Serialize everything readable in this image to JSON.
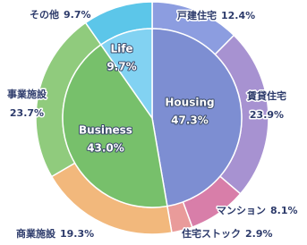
{
  "chart_data": {
    "type": "sunburst",
    "inner": {
      "categories": [
        "Housing",
        "Business",
        "Life"
      ],
      "values": [
        47.3,
        43.0,
        9.7
      ],
      "value_labels": [
        "47.3%",
        "43.0%",
        "9.7%"
      ],
      "colors": [
        "#7d8ed2",
        "#77c06b",
        "#82d2f2"
      ]
    },
    "outer": {
      "categories": [
        "戸建住宅",
        "賃貸住宅",
        "マンション",
        "住宅ストック",
        "商業施設",
        "事業施設",
        "その他"
      ],
      "values": [
        12.4,
        23.9,
        8.1,
        2.9,
        19.3,
        23.7,
        9.7
      ],
      "value_labels": [
        "12.4%",
        "23.9%",
        "8.1%",
        "2.9%",
        "19.3%",
        "23.7%",
        "9.7%"
      ],
      "colors": [
        "#8c9de0",
        "#a792d1",
        "#d87ea9",
        "#e99b9a",
        "#f2b87c",
        "#90cb7d",
        "#5cc6e9"
      ]
    }
  }
}
